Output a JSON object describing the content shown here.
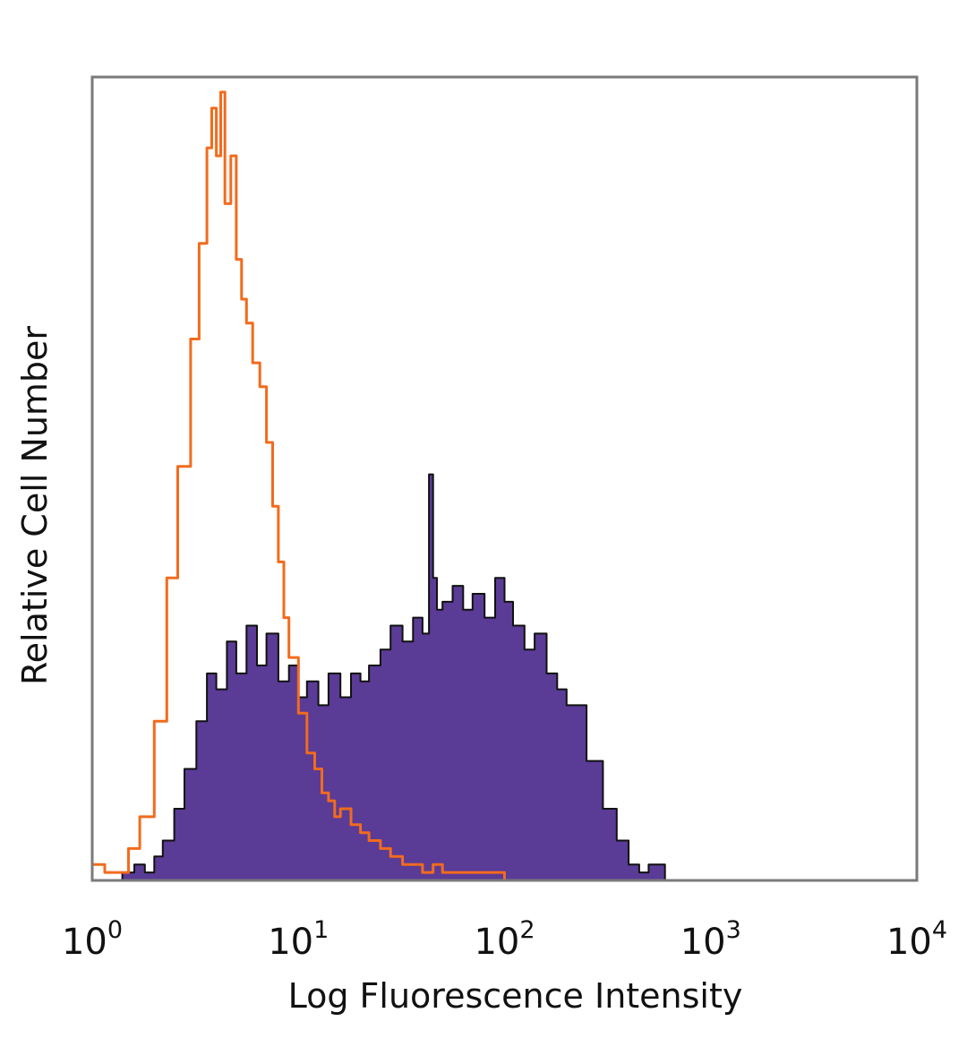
{
  "chart_data": {
    "type": "area",
    "title": "",
    "xlabel": "Log Fluorescence Intensity",
    "ylabel": "Relative Cell Number",
    "xscale": "log",
    "xlim": [
      1,
      10000
    ],
    "ylim": [
      0,
      1
    ],
    "grid": false,
    "legend": "none",
    "x_ticks": [
      {
        "base": "10",
        "exp": "0",
        "value": 1
      },
      {
        "base": "10",
        "exp": "1",
        "value": 10
      },
      {
        "base": "10",
        "exp": "2",
        "value": 100
      },
      {
        "base": "10",
        "exp": "3",
        "value": 1000
      },
      {
        "base": "10",
        "exp": "4",
        "value": 10000
      }
    ],
    "series": [
      {
        "style": "filled",
        "color": "#5a3b96",
        "edge_color": "#111111",
        "x": [
          1,
          1.4,
          1.6,
          1.8,
          2.0,
          2.2,
          2.5,
          2.8,
          3.2,
          3.6,
          4.0,
          4.5,
          5.0,
          5.6,
          6.3,
          7.0,
          8.0,
          9.0,
          10,
          11,
          12.5,
          14,
          16,
          18,
          20,
          22,
          25,
          28,
          32,
          36,
          40,
          43,
          45,
          47,
          50,
          56,
          63,
          70,
          80,
          90,
          100,
          110,
          125,
          140,
          160,
          180,
          200,
          250,
          300,
          350,
          400,
          450,
          500,
          600,
          10000
        ],
        "y": [
          0,
          0.01,
          0.02,
          0.01,
          0.03,
          0.05,
          0.09,
          0.14,
          0.2,
          0.26,
          0.24,
          0.3,
          0.26,
          0.32,
          0.27,
          0.31,
          0.25,
          0.27,
          0.23,
          0.25,
          0.22,
          0.26,
          0.23,
          0.26,
          0.25,
          0.27,
          0.29,
          0.32,
          0.3,
          0.33,
          0.31,
          0.51,
          0.38,
          0.34,
          0.35,
          0.37,
          0.34,
          0.36,
          0.33,
          0.38,
          0.35,
          0.32,
          0.29,
          0.31,
          0.26,
          0.24,
          0.22,
          0.15,
          0.09,
          0.05,
          0.02,
          0.01,
          0.02,
          0,
          0
        ]
      },
      {
        "style": "line",
        "color": "#f26b1d",
        "x": [
          1,
          1.15,
          1.3,
          1.5,
          1.7,
          2.0,
          2.3,
          2.6,
          3.0,
          3.3,
          3.6,
          3.8,
          4.0,
          4.2,
          4.4,
          4.7,
          5.0,
          5.3,
          5.6,
          6.0,
          6.5,
          7.0,
          7.5,
          8.0,
          8.5,
          9.0,
          10,
          11,
          12,
          13,
          14,
          15,
          16,
          18,
          20,
          22,
          25,
          28,
          32,
          36,
          40,
          45,
          50,
          60,
          70,
          80,
          90,
          100,
          10000
        ],
        "y": [
          0.02,
          0.01,
          0.01,
          0.04,
          0.08,
          0.2,
          0.38,
          0.52,
          0.68,
          0.8,
          0.92,
          0.97,
          0.91,
          0.99,
          0.85,
          0.91,
          0.78,
          0.73,
          0.7,
          0.65,
          0.62,
          0.55,
          0.47,
          0.4,
          0.33,
          0.28,
          0.21,
          0.16,
          0.14,
          0.11,
          0.1,
          0.08,
          0.09,
          0.07,
          0.06,
          0.05,
          0.04,
          0.03,
          0.02,
          0.02,
          0.01,
          0.02,
          0.01,
          0.01,
          0.01,
          0.01,
          0.01,
          0,
          0
        ]
      }
    ]
  }
}
